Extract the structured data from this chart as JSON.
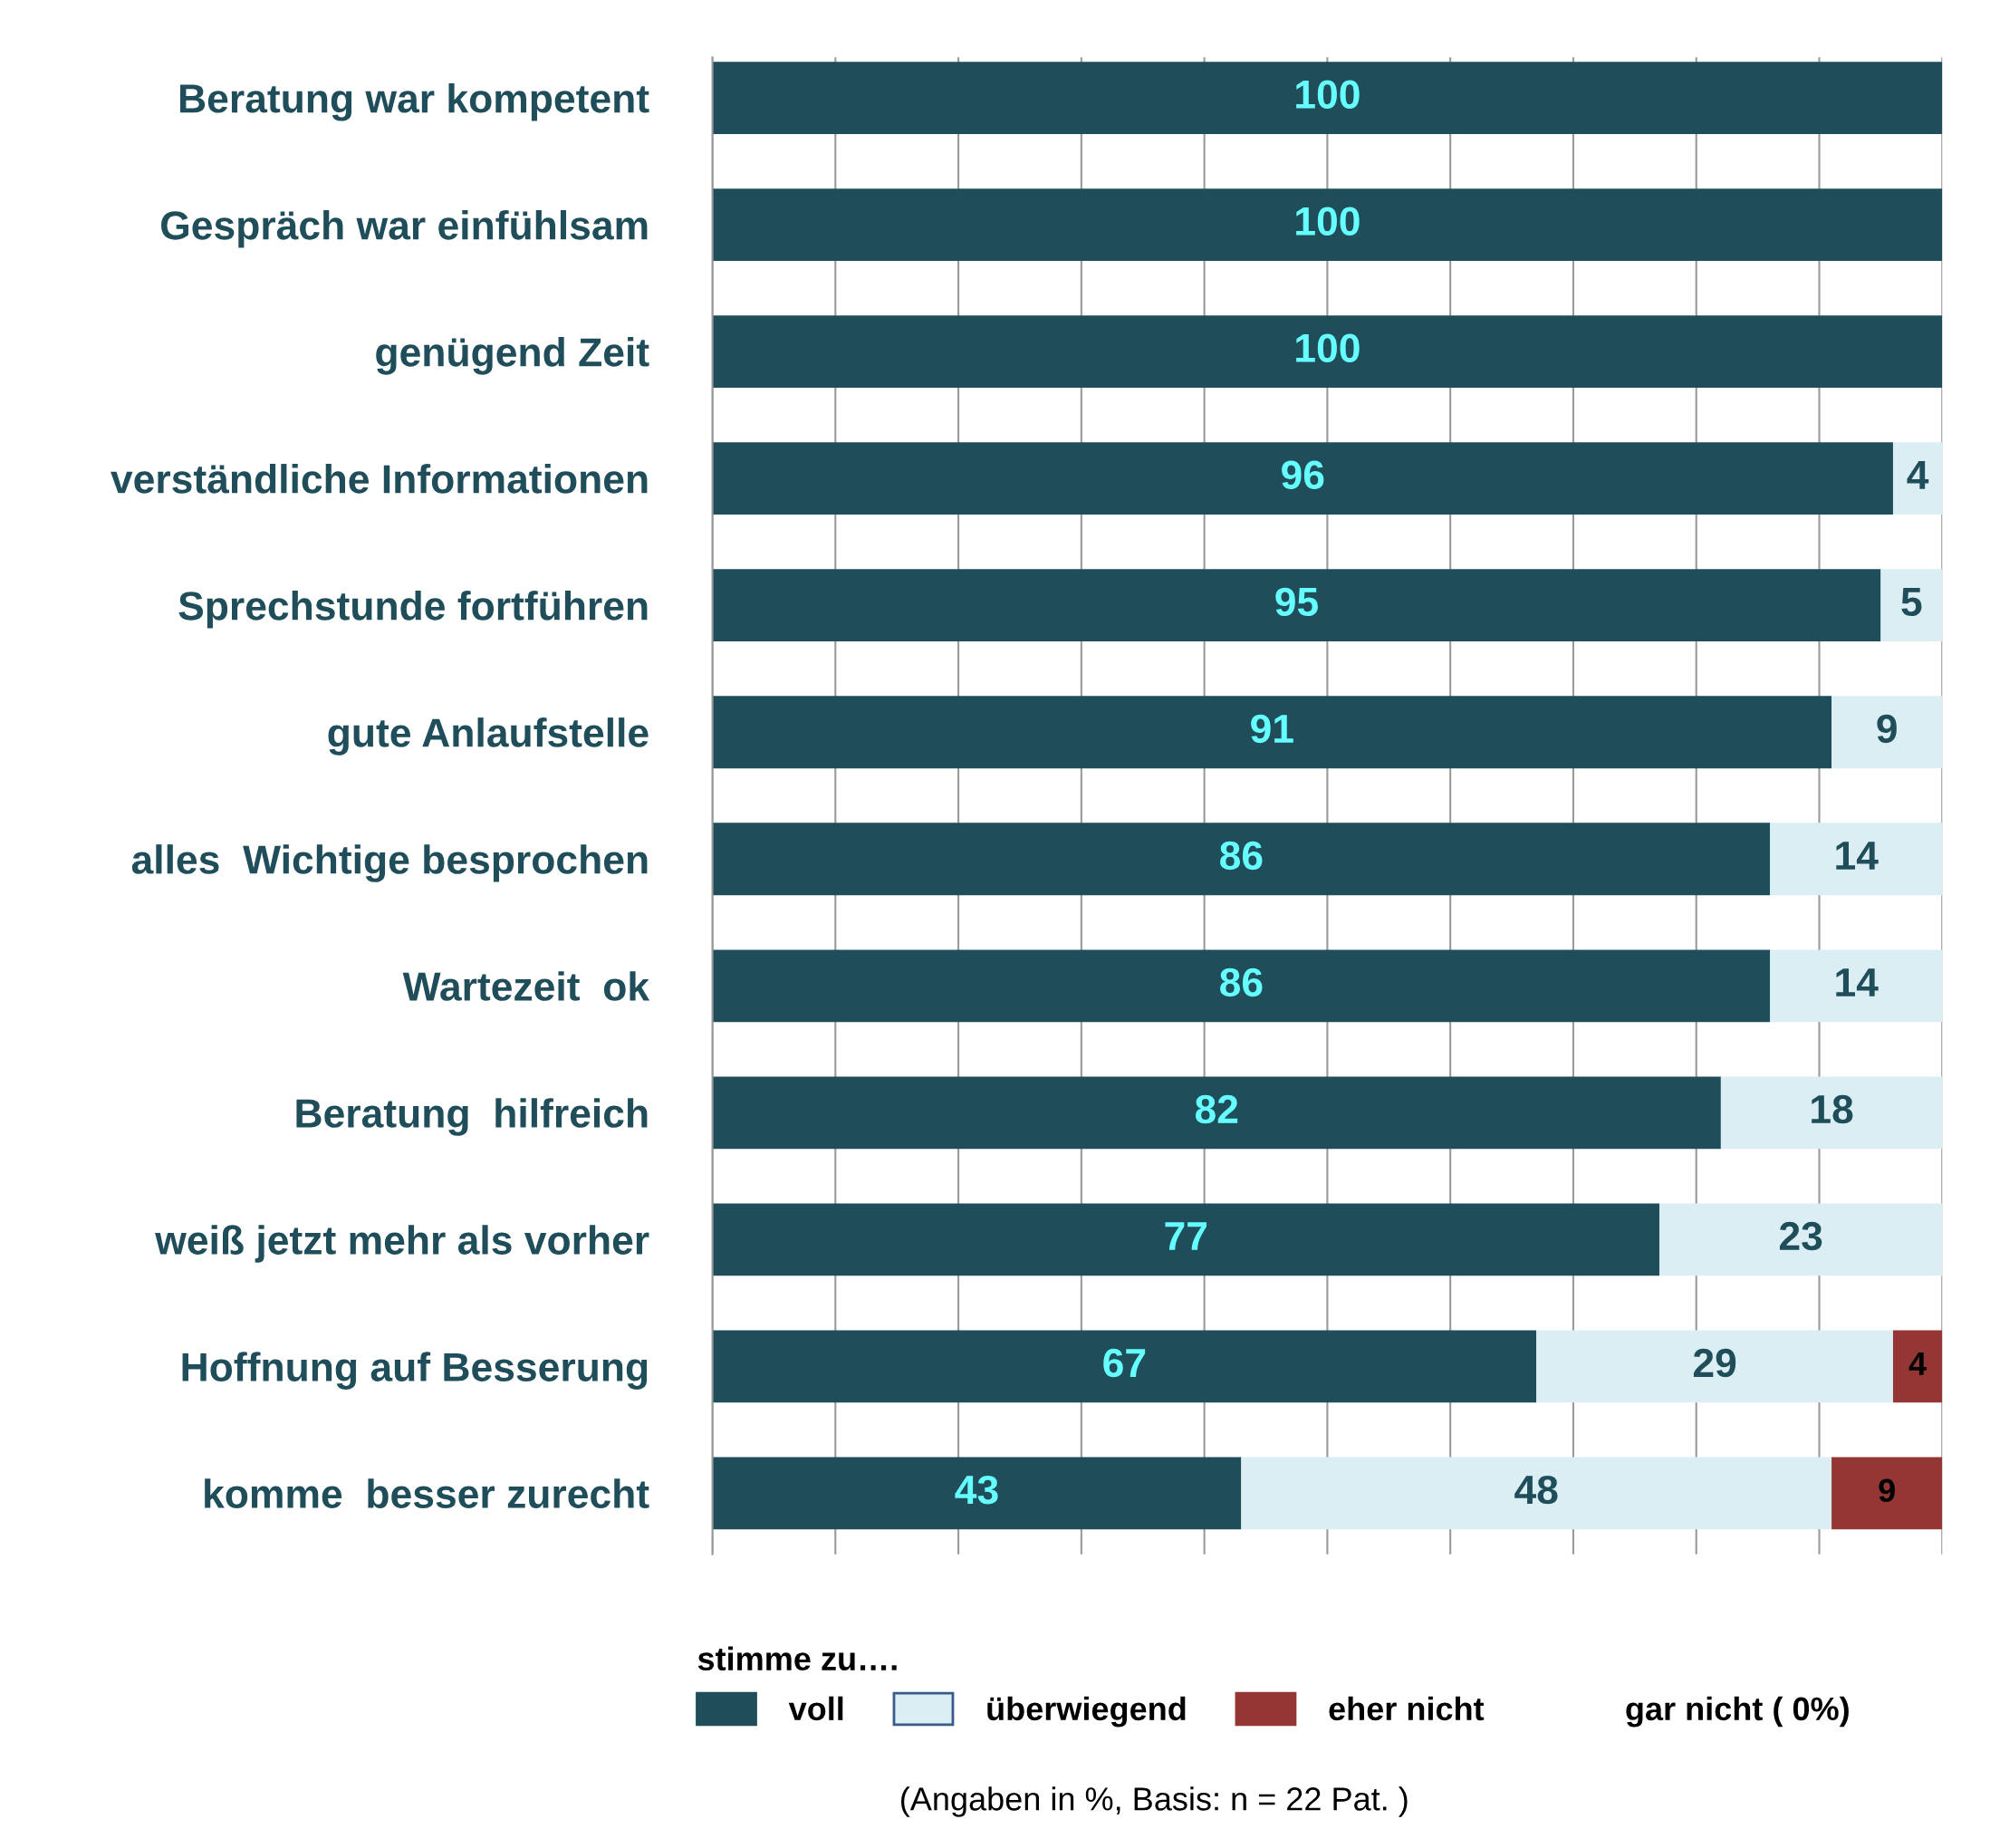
{
  "chart_data": {
    "type": "bar",
    "orientation": "horizontal",
    "stacked": true,
    "categories": [
      "Beratung war kompetent",
      "Gespräch war einfühlsam",
      "genügend Zeit",
      "verständliche Informationen",
      "Sprechstunde fortführen",
      "gute Anlaufstelle",
      "alles  Wichtige besprochen",
      "Wartezeit  ok",
      "Beratung  hilfreich",
      "weiß jetzt mehr als vorher",
      "Hoffnung auf Besserung",
      "komme  besser zurecht"
    ],
    "series": [
      {
        "name": "voll",
        "color": "#1f4e5a",
        "values": [
          100,
          100,
          100,
          96,
          95,
          91,
          86,
          86,
          82,
          77,
          67,
          43
        ],
        "value_labels": [
          "100",
          "100",
          "100",
          "96",
          "95",
          "91",
          "86",
          "86",
          "82",
          "77",
          "67",
          "43"
        ]
      },
      {
        "name": "überwiegend",
        "color": "#daeef3",
        "values": [
          0,
          0,
          0,
          4,
          5,
          9,
          14,
          14,
          18,
          23,
          29,
          48
        ],
        "value_labels": [
          null,
          null,
          null,
          "4",
          "5",
          "9",
          "14",
          "14",
          "18",
          "23",
          "29",
          "48"
        ]
      },
      {
        "name": "eher nicht",
        "color": "#943634",
        "values": [
          0,
          0,
          0,
          0,
          0,
          0,
          0,
          0,
          0,
          0,
          4,
          9
        ],
        "value_labels": [
          null,
          null,
          null,
          null,
          null,
          null,
          null,
          null,
          null,
          null,
          "4",
          "9"
        ]
      }
    ],
    "xlim": [
      0,
      100
    ],
    "xticks": [
      {
        "value": 0,
        "label": null
      },
      {
        "value": 10,
        "label": null
      },
      {
        "value": 20,
        "label": null
      },
      {
        "value": 30,
        "label": null
      },
      {
        "value": 40,
        "label": null
      },
      {
        "value": 50,
        "label": null
      },
      {
        "value": 60,
        "label": null
      },
      {
        "value": 70,
        "label": null
      },
      {
        "value": 80,
        "label": null
      },
      {
        "value": 90,
        "label": null
      },
      {
        "value": 100,
        "label": null
      }
    ],
    "tick_labels": "y",
    "grid": "x",
    "legend": "bottom",
    "legend_title": "stimme zu….",
    "annotations": [
      "gar nicht ( 0%)",
      "(Angaben in %, Basis: n = 22 Pat. )"
    ]
  }
}
